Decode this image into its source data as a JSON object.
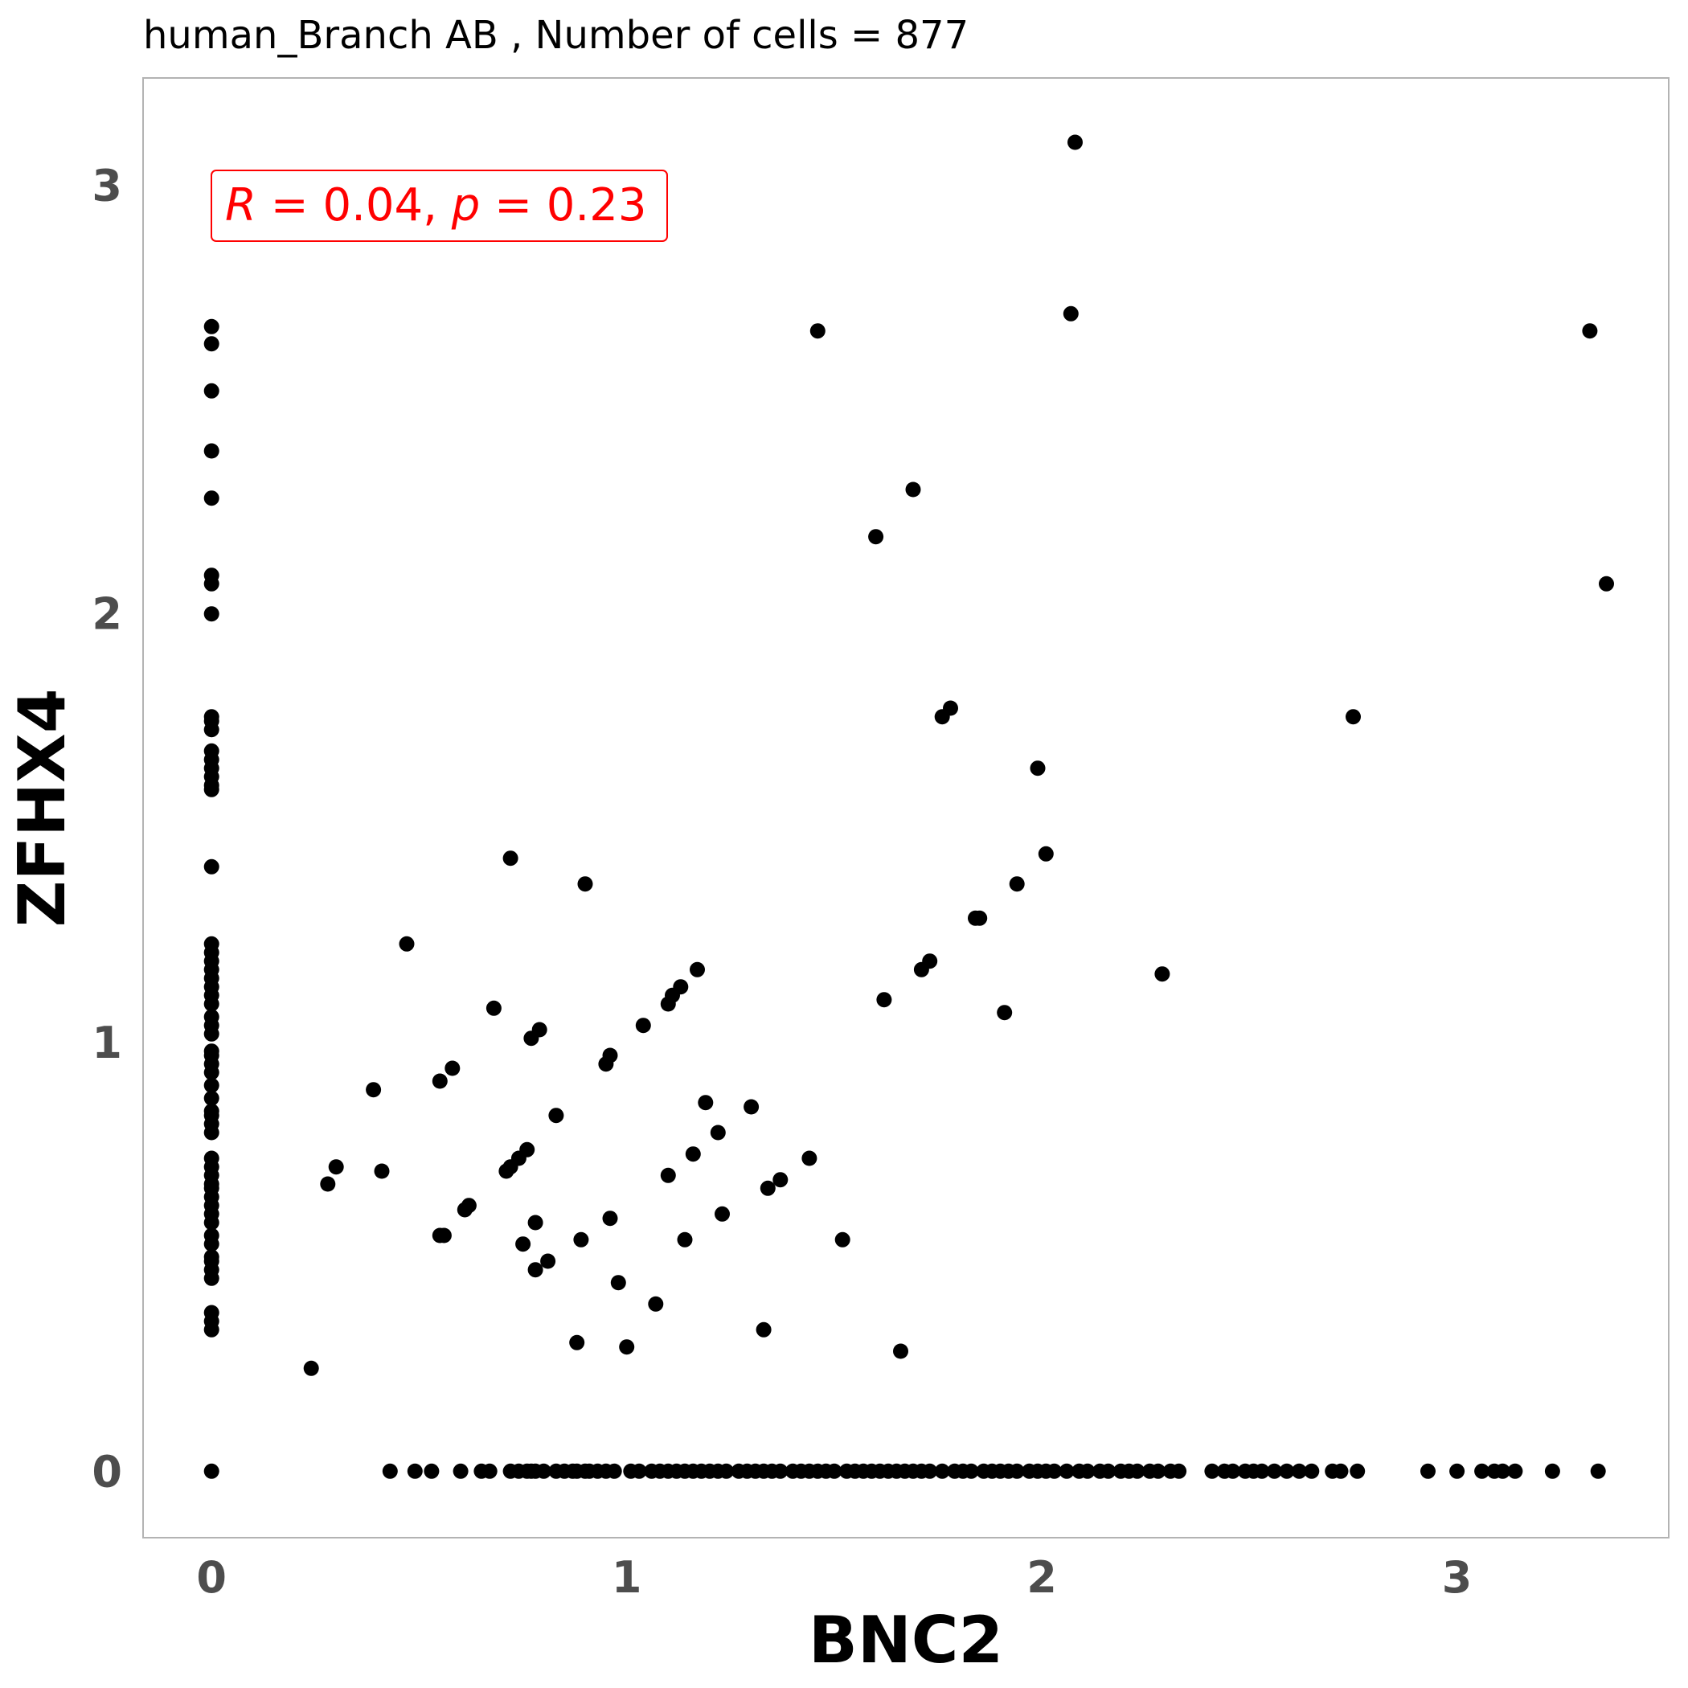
{
  "chart_data": {
    "type": "scatter",
    "title": "human_Branch AB , Number of cells =  877",
    "xlabel": "BNC2",
    "ylabel": "ZFHX4",
    "xlim": [
      -0.165,
      3.51
    ],
    "ylim": [
      -0.155,
      3.25
    ],
    "xticks": [
      0,
      1,
      2,
      3
    ],
    "yticks": [
      0,
      1,
      2,
      3
    ],
    "grid": false,
    "point_color": "#000000",
    "annotation": {
      "R_label": "R",
      "R_text": " = 0.04, ",
      "p_label": "p",
      "p_text": " = 0.23",
      "color": "#ff0000",
      "position": "top-left"
    },
    "points": [
      [
        0,
        2.67
      ],
      [
        0,
        2.63
      ],
      [
        0,
        2.52
      ],
      [
        0,
        2.38
      ],
      [
        0,
        2.27
      ],
      [
        0,
        2.09
      ],
      [
        0,
        2.07
      ],
      [
        0,
        2.0
      ],
      [
        0,
        1.76
      ],
      [
        0,
        1.75
      ],
      [
        0,
        1.73
      ],
      [
        0,
        1.68
      ],
      [
        0,
        1.66
      ],
      [
        0,
        1.64
      ],
      [
        0,
        1.62
      ],
      [
        0,
        1.6
      ],
      [
        0,
        1.59
      ],
      [
        0,
        1.41
      ],
      [
        0,
        1.23
      ],
      [
        0,
        1.21
      ],
      [
        0,
        1.19
      ],
      [
        0,
        1.17
      ],
      [
        0,
        1.15
      ],
      [
        0,
        1.13
      ],
      [
        0,
        1.11
      ],
      [
        0,
        1.09
      ],
      [
        0,
        1.06
      ],
      [
        0,
        1.04
      ],
      [
        0,
        1.02
      ],
      [
        0,
        0.98
      ],
      [
        0,
        0.97
      ],
      [
        0,
        0.95
      ],
      [
        0,
        0.93
      ],
      [
        0,
        0.9
      ],
      [
        0,
        0.87
      ],
      [
        0,
        0.84
      ],
      [
        0,
        0.83
      ],
      [
        0,
        0.81
      ],
      [
        0,
        0.79
      ],
      [
        0,
        0.73
      ],
      [
        0,
        0.71
      ],
      [
        0,
        0.69
      ],
      [
        0,
        0.67
      ],
      [
        0,
        0.66
      ],
      [
        0,
        0.64
      ],
      [
        0,
        0.62
      ],
      [
        0,
        0.6
      ],
      [
        0,
        0.58
      ],
      [
        0,
        0.55
      ],
      [
        0,
        0.53
      ],
      [
        0,
        0.5
      ],
      [
        0,
        0.49
      ],
      [
        0,
        0.47
      ],
      [
        0,
        0.45
      ],
      [
        0,
        0.37
      ],
      [
        0,
        0.35
      ],
      [
        0,
        0.33
      ],
      [
        0,
        0.0
      ],
      [
        0.24,
        0.24
      ],
      [
        0.28,
        0.67
      ],
      [
        0.3,
        0.71
      ],
      [
        0.39,
        0.89
      ],
      [
        0.41,
        0.7
      ],
      [
        0.47,
        1.23
      ],
      [
        0.55,
        0.55
      ],
      [
        0.56,
        0.55
      ],
      [
        0.55,
        0.91
      ],
      [
        0.58,
        0.94
      ],
      [
        0.61,
        0.61
      ],
      [
        0.62,
        0.62
      ],
      [
        0.68,
        1.08
      ],
      [
        0.71,
        0.7
      ],
      [
        0.72,
        0.71
      ],
      [
        0.72,
        1.43
      ],
      [
        0.74,
        0.73
      ],
      [
        0.75,
        0.53
      ],
      [
        0.76,
        0.75
      ],
      [
        0.77,
        1.01
      ],
      [
        0.78,
        0.58
      ],
      [
        0.79,
        1.03
      ],
      [
        0.78,
        0.47
      ],
      [
        0.81,
        0.49
      ],
      [
        0.83,
        0.83
      ],
      [
        0.88,
        0.3
      ],
      [
        0.89,
        0.54
      ],
      [
        0.9,
        1.37
      ],
      [
        0.95,
        0.95
      ],
      [
        0.96,
        0.97
      ],
      [
        0.96,
        0.59
      ],
      [
        0.98,
        0.44
      ],
      [
        1.0,
        0.29
      ],
      [
        1.04,
        1.04
      ],
      [
        1.07,
        0.39
      ],
      [
        1.1,
        1.09
      ],
      [
        1.1,
        0.69
      ],
      [
        1.11,
        1.11
      ],
      [
        1.13,
        1.13
      ],
      [
        1.14,
        0.54
      ],
      [
        1.16,
        0.74
      ],
      [
        1.17,
        1.17
      ],
      [
        1.19,
        0.86
      ],
      [
        1.22,
        0.79
      ],
      [
        1.23,
        0.6
      ],
      [
        1.3,
        0.85
      ],
      [
        1.33,
        0.33
      ],
      [
        1.34,
        0.66
      ],
      [
        1.37,
        0.68
      ],
      [
        1.44,
        0.73
      ],
      [
        1.46,
        2.66
      ],
      [
        1.52,
        0.54
      ],
      [
        1.6,
        2.18
      ],
      [
        1.62,
        1.1
      ],
      [
        1.66,
        0.28
      ],
      [
        1.69,
        2.29
      ],
      [
        1.71,
        1.17
      ],
      [
        1.73,
        1.19
      ],
      [
        1.76,
        1.76
      ],
      [
        1.78,
        1.78
      ],
      [
        1.84,
        1.29
      ],
      [
        1.85,
        1.29
      ],
      [
        1.91,
        1.07
      ],
      [
        1.94,
        1.37
      ],
      [
        1.99,
        1.64
      ],
      [
        2.01,
        1.44
      ],
      [
        2.07,
        2.7
      ],
      [
        2.08,
        3.1
      ],
      [
        2.29,
        1.16
      ],
      [
        2.75,
        1.76
      ],
      [
        3.32,
        2.66
      ],
      [
        3.36,
        2.07
      ],
      [
        0.43,
        0
      ],
      [
        0.49,
        0
      ],
      [
        0.53,
        0
      ],
      [
        0.6,
        0
      ],
      [
        0.65,
        0
      ],
      [
        0.67,
        0
      ],
      [
        0.72,
        0
      ],
      [
        0.74,
        0
      ],
      [
        0.76,
        0
      ],
      [
        0.77,
        0
      ],
      [
        0.78,
        0
      ],
      [
        0.8,
        0
      ],
      [
        0.83,
        0
      ],
      [
        0.85,
        0
      ],
      [
        0.87,
        0
      ],
      [
        0.88,
        0
      ],
      [
        0.9,
        0
      ],
      [
        0.91,
        0
      ],
      [
        0.93,
        0
      ],
      [
        0.95,
        0
      ],
      [
        0.97,
        0
      ],
      [
        1.01,
        0
      ],
      [
        1.03,
        0
      ],
      [
        1.06,
        0
      ],
      [
        1.08,
        0
      ],
      [
        1.1,
        0
      ],
      [
        1.12,
        0
      ],
      [
        1.14,
        0
      ],
      [
        1.16,
        0
      ],
      [
        1.18,
        0
      ],
      [
        1.2,
        0
      ],
      [
        1.22,
        0
      ],
      [
        1.24,
        0
      ],
      [
        1.27,
        0
      ],
      [
        1.29,
        0
      ],
      [
        1.31,
        0
      ],
      [
        1.33,
        0
      ],
      [
        1.35,
        0
      ],
      [
        1.37,
        0
      ],
      [
        1.4,
        0
      ],
      [
        1.42,
        0
      ],
      [
        1.44,
        0
      ],
      [
        1.46,
        0
      ],
      [
        1.48,
        0
      ],
      [
        1.5,
        0
      ],
      [
        1.53,
        0
      ],
      [
        1.55,
        0
      ],
      [
        1.57,
        0
      ],
      [
        1.59,
        0
      ],
      [
        1.61,
        0
      ],
      [
        1.63,
        0
      ],
      [
        1.65,
        0
      ],
      [
        1.67,
        0
      ],
      [
        1.69,
        0
      ],
      [
        1.71,
        0
      ],
      [
        1.73,
        0
      ],
      [
        1.76,
        0
      ],
      [
        1.79,
        0
      ],
      [
        1.81,
        0
      ],
      [
        1.83,
        0
      ],
      [
        1.86,
        0
      ],
      [
        1.88,
        0
      ],
      [
        1.9,
        0
      ],
      [
        1.92,
        0
      ],
      [
        1.94,
        0
      ],
      [
        1.97,
        0
      ],
      [
        1.99,
        0
      ],
      [
        2.01,
        0
      ],
      [
        2.03,
        0
      ],
      [
        2.06,
        0
      ],
      [
        2.09,
        0
      ],
      [
        2.11,
        0
      ],
      [
        2.14,
        0
      ],
      [
        2.16,
        0
      ],
      [
        2.19,
        0
      ],
      [
        2.21,
        0
      ],
      [
        2.23,
        0
      ],
      [
        2.26,
        0
      ],
      [
        2.28,
        0
      ],
      [
        2.31,
        0
      ],
      [
        2.33,
        0
      ],
      [
        2.41,
        0
      ],
      [
        2.44,
        0
      ],
      [
        2.46,
        0
      ],
      [
        2.49,
        0
      ],
      [
        2.51,
        0
      ],
      [
        2.53,
        0
      ],
      [
        2.56,
        0
      ],
      [
        2.59,
        0
      ],
      [
        2.62,
        0
      ],
      [
        2.65,
        0
      ],
      [
        2.7,
        0
      ],
      [
        2.72,
        0
      ],
      [
        2.76,
        0
      ],
      [
        2.93,
        0
      ],
      [
        3.0,
        0
      ],
      [
        3.06,
        0
      ],
      [
        3.09,
        0
      ],
      [
        3.11,
        0
      ],
      [
        3.14,
        0
      ],
      [
        3.23,
        0
      ],
      [
        3.34,
        0
      ]
    ]
  }
}
